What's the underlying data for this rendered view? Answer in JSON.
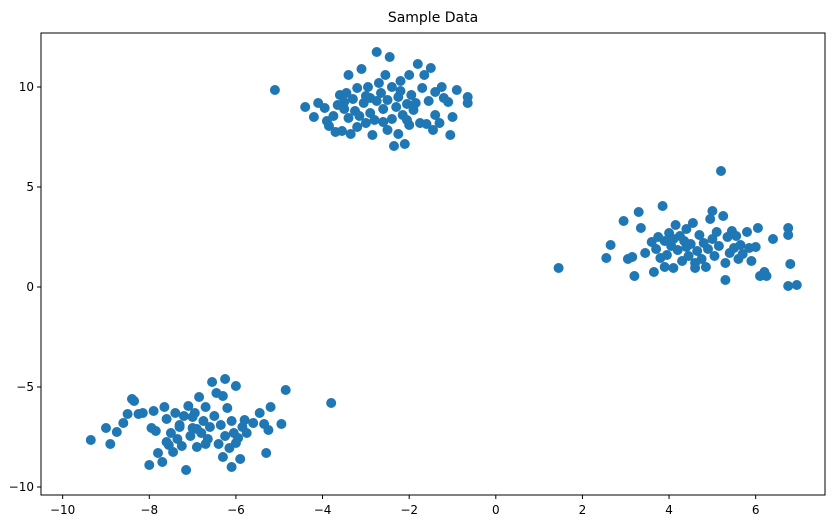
{
  "chart_data": {
    "type": "scatter",
    "title": "Sample Data",
    "xlabel": "",
    "ylabel": "",
    "xlim": [
      -10.5,
      7.6
    ],
    "ylim": [
      -10.4,
      12.7
    ],
    "xticks": [
      -10,
      -8,
      -6,
      -4,
      -2,
      0,
      2,
      4,
      6
    ],
    "yticks": [
      -10,
      -5,
      0,
      5,
      10
    ],
    "grid": false,
    "point_color": "#1f77b4",
    "series": [
      {
        "points": [
          [
            -5.1,
            9.85
          ],
          [
            -4.4,
            9.0
          ],
          [
            -4.2,
            8.5
          ],
          [
            -4.1,
            9.2
          ],
          [
            -3.95,
            8.95
          ],
          [
            -3.9,
            8.3
          ],
          [
            -3.85,
            8.05
          ],
          [
            -3.75,
            8.55
          ],
          [
            -3.7,
            7.75
          ],
          [
            -3.65,
            9.1
          ],
          [
            -3.6,
            9.6
          ],
          [
            -3.55,
            7.8
          ],
          [
            -3.5,
            8.9
          ],
          [
            -3.45,
            9.7
          ],
          [
            -3.4,
            10.6
          ],
          [
            -3.4,
            8.45
          ],
          [
            -3.35,
            7.65
          ],
          [
            -3.3,
            9.4
          ],
          [
            -3.25,
            8.8
          ],
          [
            -3.2,
            9.95
          ],
          [
            -3.15,
            8.55
          ],
          [
            -3.1,
            10.9
          ],
          [
            -3.05,
            9.2
          ],
          [
            -3.0,
            8.2
          ],
          [
            -3.0,
            9.55
          ],
          [
            -2.95,
            10.0
          ],
          [
            -2.9,
            8.7
          ],
          [
            -2.85,
            7.6
          ],
          [
            -2.8,
            8.35
          ],
          [
            -2.75,
            11.75
          ],
          [
            -2.75,
            9.3
          ],
          [
            -2.7,
            10.2
          ],
          [
            -2.65,
            9.7
          ],
          [
            -2.6,
            8.9
          ],
          [
            -2.55,
            10.6
          ],
          [
            -2.5,
            7.85
          ],
          [
            -2.5,
            9.35
          ],
          [
            -2.45,
            11.5
          ],
          [
            -2.4,
            8.4
          ],
          [
            -2.4,
            10.0
          ],
          [
            -2.35,
            7.05
          ],
          [
            -2.3,
            9.0
          ],
          [
            -2.25,
            7.65
          ],
          [
            -2.25,
            9.5
          ],
          [
            -2.2,
            10.3
          ],
          [
            -2.15,
            8.6
          ],
          [
            -2.1,
            7.15
          ],
          [
            -2.05,
            9.15
          ],
          [
            -2.0,
            10.6
          ],
          [
            -2.0,
            8.1
          ],
          [
            -1.95,
            9.6
          ],
          [
            -1.9,
            8.85
          ],
          [
            -1.85,
            9.2
          ],
          [
            -1.8,
            11.15
          ],
          [
            -1.75,
            8.2
          ],
          [
            -1.7,
            9.95
          ],
          [
            -1.65,
            10.6
          ],
          [
            -1.6,
            8.15
          ],
          [
            -1.55,
            9.3
          ],
          [
            -1.5,
            10.95
          ],
          [
            -1.45,
            7.85
          ],
          [
            -1.4,
            9.75
          ],
          [
            -1.3,
            8.2
          ],
          [
            -1.25,
            10.0
          ],
          [
            -1.2,
            9.45
          ],
          [
            -1.1,
            9.25
          ],
          [
            -1.05,
            7.6
          ],
          [
            -1.0,
            8.5
          ],
          [
            -0.9,
            9.85
          ],
          [
            -0.65,
            9.5
          ],
          [
            -0.65,
            9.2
          ],
          [
            -1.4,
            8.6
          ],
          [
            -2.9,
            9.45
          ],
          [
            -3.2,
            8.0
          ],
          [
            -2.6,
            8.25
          ],
          [
            -2.05,
            8.35
          ],
          [
            -3.5,
            9.25
          ],
          [
            -2.2,
            9.8
          ],
          [
            1.45,
            0.95
          ],
          [
            2.55,
            1.45
          ],
          [
            2.65,
            2.1
          ],
          [
            2.95,
            3.3
          ],
          [
            3.05,
            1.4
          ],
          [
            3.15,
            1.5
          ],
          [
            3.2,
            0.55
          ],
          [
            3.3,
            3.75
          ],
          [
            3.35,
            2.95
          ],
          [
            3.45,
            1.7
          ],
          [
            3.6,
            2.25
          ],
          [
            3.65,
            0.75
          ],
          [
            3.7,
            1.9
          ],
          [
            3.75,
            2.5
          ],
          [
            3.8,
            1.45
          ],
          [
            3.85,
            4.05
          ],
          [
            3.9,
            2.3
          ],
          [
            3.95,
            1.6
          ],
          [
            4.0,
            2.7
          ],
          [
            4.05,
            2.05
          ],
          [
            4.1,
            0.95
          ],
          [
            4.15,
            3.1
          ],
          [
            4.2,
            1.85
          ],
          [
            4.25,
            2.55
          ],
          [
            4.3,
            1.3
          ],
          [
            4.35,
            2.3
          ],
          [
            4.4,
            2.9
          ],
          [
            4.45,
            1.55
          ],
          [
            4.5,
            2.15
          ],
          [
            4.55,
            3.2
          ],
          [
            4.6,
            0.95
          ],
          [
            4.65,
            1.8
          ],
          [
            4.7,
            2.6
          ],
          [
            4.75,
            1.4
          ],
          [
            4.8,
            2.2
          ],
          [
            4.85,
            1.0
          ],
          [
            4.9,
            1.9
          ],
          [
            4.95,
            3.4
          ],
          [
            5.0,
            3.8
          ],
          [
            5.05,
            1.55
          ],
          [
            5.1,
            2.75
          ],
          [
            5.15,
            2.05
          ],
          [
            5.2,
            5.8
          ],
          [
            5.25,
            3.55
          ],
          [
            5.3,
            0.35
          ],
          [
            5.35,
            2.5
          ],
          [
            5.4,
            1.7
          ],
          [
            5.45,
            2.8
          ],
          [
            5.5,
            1.95
          ],
          [
            5.55,
            2.55
          ],
          [
            5.6,
            1.4
          ],
          [
            5.65,
            2.1
          ],
          [
            5.7,
            1.65
          ],
          [
            5.8,
            2.75
          ],
          [
            5.85,
            1.95
          ],
          [
            5.9,
            1.3
          ],
          [
            6.0,
            2.0
          ],
          [
            6.05,
            2.95
          ],
          [
            6.1,
            0.55
          ],
          [
            6.2,
            0.75
          ],
          [
            6.25,
            0.55
          ],
          [
            6.4,
            2.4
          ],
          [
            6.75,
            2.95
          ],
          [
            6.75,
            2.6
          ],
          [
            6.8,
            1.15
          ],
          [
            6.75,
            0.05
          ],
          [
            6.95,
            0.1
          ],
          [
            4.1,
            2.4
          ],
          [
            4.6,
            1.2
          ],
          [
            5.3,
            1.2
          ],
          [
            3.9,
            1.0
          ],
          [
            4.4,
            2.0
          ],
          [
            5.0,
            2.4
          ],
          [
            -9.35,
            -7.65
          ],
          [
            -9.0,
            -7.05
          ],
          [
            -8.9,
            -7.85
          ],
          [
            -8.75,
            -7.25
          ],
          [
            -8.6,
            -6.8
          ],
          [
            -8.5,
            -6.35
          ],
          [
            -8.4,
            -5.6
          ],
          [
            -8.35,
            -5.7
          ],
          [
            -8.25,
            -6.35
          ],
          [
            -8.15,
            -6.3
          ],
          [
            -8.0,
            -8.9
          ],
          [
            -7.95,
            -7.05
          ],
          [
            -7.9,
            -6.2
          ],
          [
            -7.85,
            -7.2
          ],
          [
            -7.8,
            -8.3
          ],
          [
            -7.7,
            -8.75
          ],
          [
            -7.65,
            -6.0
          ],
          [
            -7.6,
            -6.6
          ],
          [
            -7.55,
            -7.9
          ],
          [
            -7.5,
            -7.3
          ],
          [
            -7.45,
            -8.25
          ],
          [
            -7.4,
            -6.3
          ],
          [
            -7.35,
            -7.6
          ],
          [
            -7.3,
            -6.9
          ],
          [
            -7.25,
            -7.95
          ],
          [
            -7.2,
            -6.45
          ],
          [
            -7.15,
            -9.15
          ],
          [
            -7.1,
            -5.95
          ],
          [
            -7.05,
            -7.45
          ],
          [
            -7.0,
            -7.05
          ],
          [
            -6.95,
            -6.3
          ],
          [
            -6.9,
            -8.0
          ],
          [
            -6.85,
            -5.5
          ],
          [
            -6.8,
            -7.3
          ],
          [
            -6.75,
            -6.7
          ],
          [
            -6.7,
            -6.0
          ],
          [
            -6.65,
            -7.6
          ],
          [
            -6.6,
            -7.0
          ],
          [
            -6.55,
            -4.75
          ],
          [
            -6.5,
            -6.45
          ],
          [
            -6.45,
            -5.3
          ],
          [
            -6.4,
            -7.85
          ],
          [
            -6.35,
            -6.9
          ],
          [
            -6.3,
            -5.45
          ],
          [
            -6.25,
            -7.45
          ],
          [
            -6.2,
            -6.05
          ],
          [
            -6.15,
            -8.05
          ],
          [
            -6.1,
            -6.7
          ],
          [
            -6.05,
            -7.3
          ],
          [
            -6.0,
            -4.95
          ],
          [
            -5.95,
            -7.55
          ],
          [
            -5.9,
            -8.6
          ],
          [
            -5.85,
            -7.0
          ],
          [
            -5.8,
            -6.65
          ],
          [
            -5.75,
            -7.3
          ],
          [
            -5.6,
            -6.8
          ],
          [
            -5.45,
            -6.3
          ],
          [
            -5.35,
            -6.85
          ],
          [
            -5.3,
            -8.3
          ],
          [
            -5.25,
            -7.15
          ],
          [
            -5.2,
            -6.0
          ],
          [
            -4.95,
            -6.85
          ],
          [
            -4.85,
            -5.15
          ],
          [
            -6.25,
            -4.6
          ],
          [
            -6.1,
            -9.0
          ],
          [
            -6.3,
            -8.5
          ],
          [
            -6.7,
            -7.85
          ],
          [
            -7.0,
            -6.5
          ],
          [
            -7.6,
            -7.75
          ],
          [
            -3.8,
            -5.8
          ],
          [
            -6.9,
            -7.1
          ],
          [
            -6.0,
            -7.8
          ],
          [
            -7.3,
            -7.0
          ]
        ]
      }
    ]
  }
}
